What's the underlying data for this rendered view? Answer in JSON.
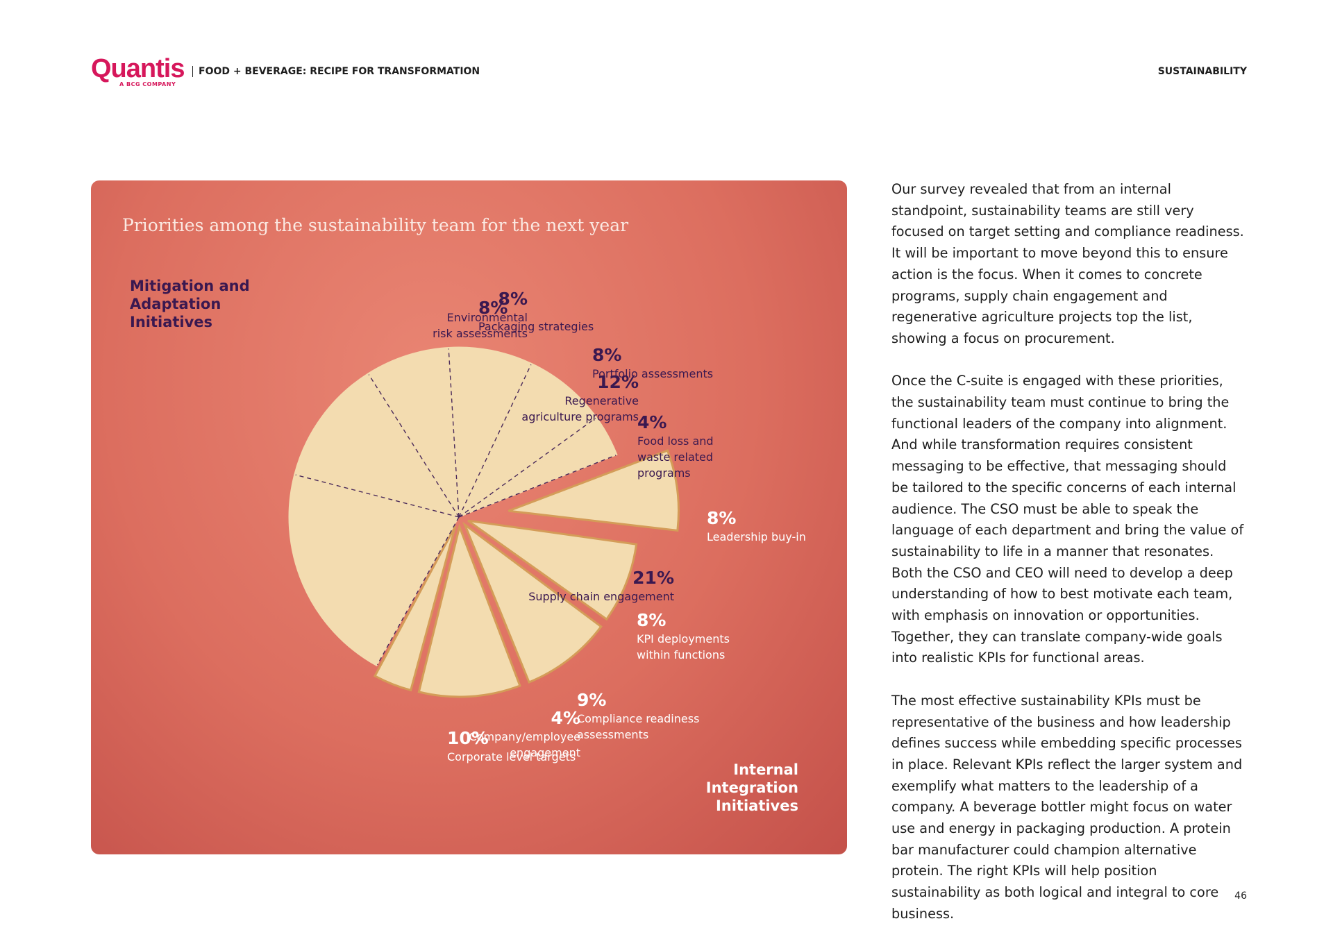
{
  "header": {
    "logo": "Quantis",
    "logo_tagline": "A BCG COMPANY",
    "title": "FOOD + BEVERAGE: RECIPE FOR TRANSFORMATION",
    "section": "SUSTAINABILITY"
  },
  "chart_data": {
    "type": "pie",
    "title": "Priorities among the sustainability team for the next year",
    "color": "#f3dcb0",
    "series": [
      {
        "name": "Internal Integration Initiatives",
        "label_color": "#ffffff",
        "categories": [
          "Leadership buy-in",
          "KPI deployments within functions",
          "Compliance readiness assessments",
          "Corporate level targets",
          "Company/employee engagement"
        ],
        "values": [
          8,
          8,
          9,
          10,
          4
        ],
        "value_labels": [
          "8%",
          "8%",
          "9%",
          "10%",
          "4%"
        ]
      },
      {
        "name": "Mitigation and Adaptation Initiatives",
        "label_color": "#3a1850",
        "categories": [
          "Supply chain engagement",
          "Regenerative agriculture programs",
          "Environmental risk assessments",
          "Packaging strategies",
          "Portfolio assessments",
          "Food loss and waste related programs"
        ],
        "values": [
          21,
          12,
          8,
          8,
          8,
          4
        ],
        "value_labels": [
          "21%",
          "12%",
          "8%",
          "8%",
          "8%",
          "4%"
        ]
      }
    ]
  },
  "body": [
    "Our survey revealed that from an internal standpoint, sustainability teams are still very focused on target setting and compliance readiness. It will be important to move beyond this to ensure action is the focus. When it comes to concrete programs, supply chain engagement and regenerative agriculture projects top the list, showing a focus on procurement.",
    "Once the C-suite is engaged with these priorities, the sustainability team must continue to bring the functional leaders of the company into alignment. And while transformation requires consistent messaging to be effective, that messaging should be tailored to the specific concerns of each internal audience. The CSO must be able to speak the language of each department and bring the value of sustainability to life in a manner that resonates. Both the CSO and CEO will need to develop a deep understanding of how to best motivate each team, with emphasis on innovation or opportunities. Together, they can translate company-wide goals into realistic KPIs for functional areas.",
    "The most effective sustainability KPIs must be representative of the business and how leadership defines success while embedding specific processes in place. Relevant KPIs reflect the larger system and exemplify what matters to the leadership of a company. A beverage bottler might focus on water use and energy in packaging production. A protein bar manufacturer could champion alternative protein. The right KPIs will help position sustainability as both logical and integral to core business."
  ],
  "page_number": "46"
}
